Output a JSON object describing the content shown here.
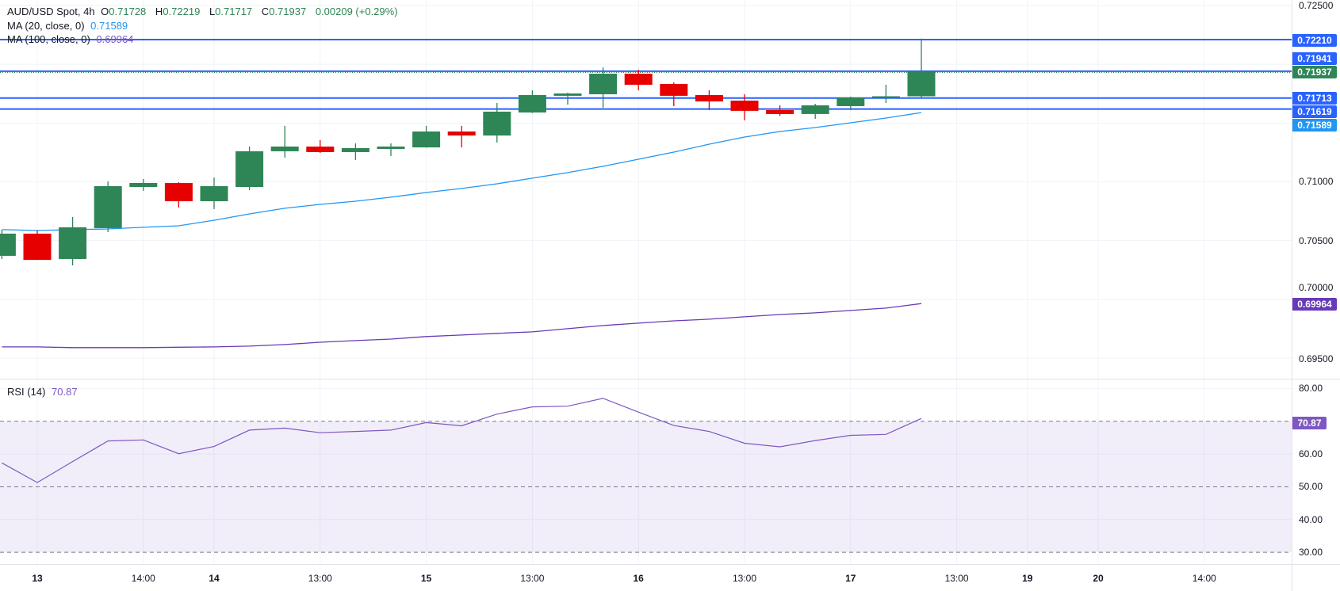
{
  "legend": {
    "symbol": "AUD/USD Spot, 4h",
    "o_label": "O",
    "o_value": "0.71728",
    "h_label": "H",
    "h_value": "0.72219",
    "l_label": "L",
    "l_value": "0.71717",
    "c_label": "C",
    "c_value": "0.71937",
    "change": "0.00209 (+0.29%)",
    "ma20_label": "MA (20, close, 0)",
    "ma20_value": "0.71589",
    "ma100_label": "MA (100, close, 0)",
    "ma100_value": "0.69964",
    "rsi_label": "RSI (14)",
    "rsi_value": "70.87"
  },
  "price_axis": {
    "labels": [
      "0.72500",
      "0.71000",
      "0.70500",
      "0.70000",
      "0.69500"
    ],
    "tags": [
      {
        "text": "0.72210",
        "color": "#2962ff"
      },
      {
        "text": "0.71941",
        "color": "#2962ff"
      },
      {
        "text": "0.71937",
        "color": "#2e8555"
      },
      {
        "text": "0.71713",
        "color": "#2962ff"
      },
      {
        "text": "0.71619",
        "color": "#2962ff"
      },
      {
        "text": "0.71589",
        "color": "#2196f3"
      },
      {
        "text": "0.69964",
        "color": "#673ab7"
      }
    ]
  },
  "rsi_axis": {
    "labels": [
      "80.00",
      "60.00",
      "50.00",
      "40.00",
      "30.00"
    ],
    "tag": {
      "text": "70.87",
      "color": "#7e57c2"
    }
  },
  "time_axis": [
    {
      "label": "13",
      "bar": 1,
      "bold": true
    },
    {
      "label": "14:00",
      "bar": 4,
      "bold": false
    },
    {
      "label": "14",
      "bar": 6,
      "bold": true
    },
    {
      "label": "13:00",
      "bar": 9,
      "bold": false
    },
    {
      "label": "15",
      "bar": 12,
      "bold": true
    },
    {
      "label": "13:00",
      "bar": 15,
      "bold": false
    },
    {
      "label": "16",
      "bar": 18,
      "bold": true
    },
    {
      "label": "13:00",
      "bar": 21,
      "bold": false
    },
    {
      "label": "17",
      "bar": 24,
      "bold": true
    },
    {
      "label": "13:00",
      "bar": 27,
      "bold": false
    },
    {
      "label": "19",
      "bar": 29,
      "bold": true
    },
    {
      "label": "20",
      "bar": 31,
      "bold": true
    },
    {
      "label": "14:00",
      "bar": 34,
      "bold": false
    }
  ],
  "chart_data": {
    "type": "candlestick",
    "symbol": "AUD/USD Spot",
    "interval": "4h",
    "price_range": [
      0.695,
      0.725
    ],
    "price_ticks": [
      0.725,
      0.72,
      0.715,
      0.71,
      0.705,
      0.7,
      0.695
    ],
    "colors": {
      "up": "#2e8555",
      "down": "#e60000",
      "ma20": "#2196f3",
      "ma100": "#673ab7",
      "hline": "#2962ff",
      "rsi": "#7e57c2"
    },
    "candles": [
      {
        "o": 0.7037,
        "h": 0.70592,
        "l": 0.70343,
        "c": 0.70559
      },
      {
        "o": 0.70559,
        "h": 0.70586,
        "l": 0.70336,
        "c": 0.70336
      },
      {
        "o": 0.70343,
        "h": 0.707,
        "l": 0.70289,
        "c": 0.70613
      },
      {
        "o": 0.70606,
        "h": 0.71004,
        "l": 0.70572,
        "c": 0.70963
      },
      {
        "o": 0.70956,
        "h": 0.71024,
        "l": 0.70923,
        "c": 0.7099
      },
      {
        "o": 0.7099,
        "h": 0.70997,
        "l": 0.70781,
        "c": 0.70835
      },
      {
        "o": 0.70835,
        "h": 0.71037,
        "l": 0.70768,
        "c": 0.70963
      },
      {
        "o": 0.70956,
        "h": 0.713,
        "l": 0.70929,
        "c": 0.7126
      },
      {
        "o": 0.7126,
        "h": 0.71476,
        "l": 0.71206,
        "c": 0.713
      },
      {
        "o": 0.713,
        "h": 0.71354,
        "l": 0.71246,
        "c": 0.71253
      },
      {
        "o": 0.71253,
        "h": 0.71327,
        "l": 0.71186,
        "c": 0.71287
      },
      {
        "o": 0.7128,
        "h": 0.71327,
        "l": 0.71219,
        "c": 0.713
      },
      {
        "o": 0.71293,
        "h": 0.71476,
        "l": 0.7129,
        "c": 0.71428
      },
      {
        "o": 0.71428,
        "h": 0.71476,
        "l": 0.71293,
        "c": 0.71394
      },
      {
        "o": 0.71394,
        "h": 0.71671,
        "l": 0.71334,
        "c": 0.71597
      },
      {
        "o": 0.7159,
        "h": 0.71779,
        "l": 0.71585,
        "c": 0.71738
      },
      {
        "o": 0.71732,
        "h": 0.71759,
        "l": 0.71657,
        "c": 0.71752
      },
      {
        "o": 0.71745,
        "h": 0.71974,
        "l": 0.7163,
        "c": 0.7192
      },
      {
        "o": 0.7192,
        "h": 0.71954,
        "l": 0.71779,
        "c": 0.71826
      },
      {
        "o": 0.71833,
        "h": 0.71846,
        "l": 0.71644,
        "c": 0.71732
      },
      {
        "o": 0.71738,
        "h": 0.71779,
        "l": 0.7161,
        "c": 0.71684
      },
      {
        "o": 0.71691,
        "h": 0.71745,
        "l": 0.71523,
        "c": 0.71604
      },
      {
        "o": 0.7161,
        "h": 0.71651,
        "l": 0.71563,
        "c": 0.71577
      },
      {
        "o": 0.71577,
        "h": 0.71664,
        "l": 0.71536,
        "c": 0.71651
      },
      {
        "o": 0.71644,
        "h": 0.71725,
        "l": 0.7161,
        "c": 0.71718
      },
      {
        "o": 0.71718,
        "h": 0.71826,
        "l": 0.71671,
        "c": 0.71728
      },
      {
        "o": 0.71728,
        "h": 0.72219,
        "l": 0.71717,
        "c": 0.71937
      }
    ],
    "ma20": [
      0.70593,
      0.70586,
      0.70593,
      0.70599,
      0.70613,
      0.70626,
      0.70673,
      0.70727,
      0.70775,
      0.70808,
      0.70835,
      0.70869,
      0.70909,
      0.70943,
      0.70983,
      0.71031,
      0.71078,
      0.71132,
      0.71192,
      0.71253,
      0.7132,
      0.71381,
      0.71428,
      0.71462,
      0.71502,
      0.71543,
      0.71589
    ],
    "ma100": [
      0.69595,
      0.69595,
      0.69589,
      0.69589,
      0.69589,
      0.69592,
      0.69595,
      0.69602,
      0.69615,
      0.69635,
      0.69649,
      0.69662,
      0.69683,
      0.69696,
      0.6971,
      0.69723,
      0.6975,
      0.69777,
      0.69797,
      0.69817,
      0.69831,
      0.69851,
      0.69871,
      0.69885,
      0.69905,
      0.69925,
      0.69964
    ],
    "horizontal_lines": [
      0.7221,
      0.71941,
      0.71713,
      0.71619
    ],
    "last_price_line": 0.71937,
    "rsi": {
      "period": 14,
      "range": [
        30,
        80
      ],
      "band": [
        30,
        70
      ],
      "levels": [
        70,
        50,
        30
      ],
      "values": [
        57.3,
        51.3,
        57.7,
        64.0,
        64.3,
        60.1,
        62.3,
        67.3,
        67.9,
        66.5,
        66.9,
        67.3,
        69.6,
        68.6,
        72.2,
        74.4,
        74.6,
        77.0,
        72.8,
        68.7,
        66.9,
        63.3,
        62.2,
        64.1,
        65.7,
        66.0,
        70.87
      ]
    }
  }
}
